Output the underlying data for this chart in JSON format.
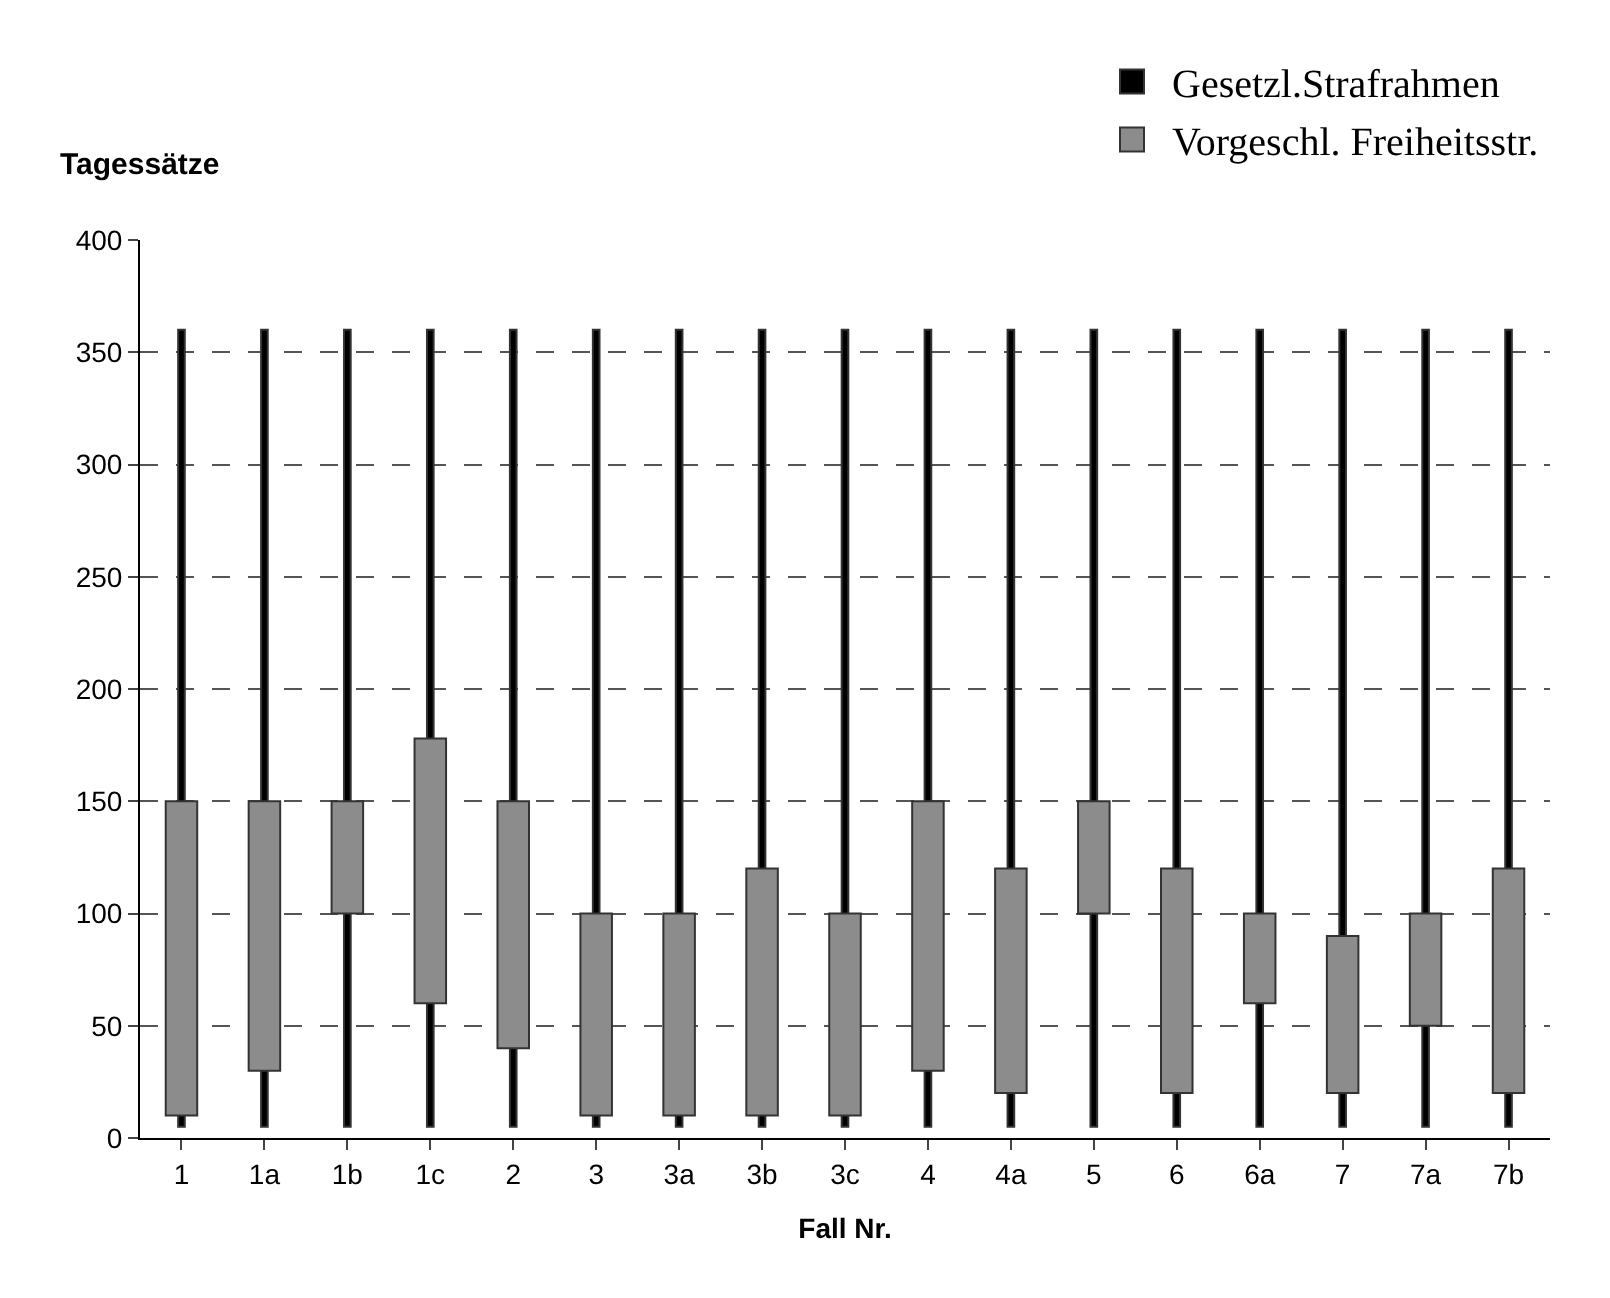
{
  "chart_data": {
    "type": "bar",
    "xlabel": "Fall Nr.",
    "ylabel": "Tagessätze",
    "categories": [
      "1",
      "1a",
      "1b",
      "1c",
      "2",
      "3",
      "3a",
      "3b",
      "3c",
      "4",
      "4a",
      "5",
      "6",
      "6a",
      "7",
      "7a",
      "7b"
    ],
    "series": [
      {
        "name": "Gesetzl.Strafrahmen",
        "color": "#000000",
        "base": [
          5,
          5,
          5,
          5,
          5,
          5,
          5,
          5,
          5,
          5,
          5,
          5,
          5,
          5,
          5,
          5,
          5
        ],
        "values": [
          355,
          355,
          355,
          355,
          355,
          355,
          355,
          355,
          355,
          355,
          355,
          355,
          355,
          355,
          355,
          355,
          355
        ]
      },
      {
        "name": "Vorgeschl. Freiheitsstr.",
        "color": "#8c8c8c",
        "base": [
          10,
          30,
          100,
          60,
          40,
          10,
          10,
          10,
          10,
          30,
          20,
          100,
          20,
          60,
          20,
          50,
          20
        ],
        "values": [
          140,
          120,
          50,
          118,
          110,
          90,
          90,
          110,
          90,
          120,
          100,
          50,
          100,
          40,
          70,
          50,
          100
        ]
      }
    ],
    "ylim": [
      0,
      400
    ],
    "yticks": [
      0,
      50,
      100,
      150,
      200,
      250,
      300,
      350,
      400
    ],
    "grid": "y",
    "legend": "top right"
  }
}
